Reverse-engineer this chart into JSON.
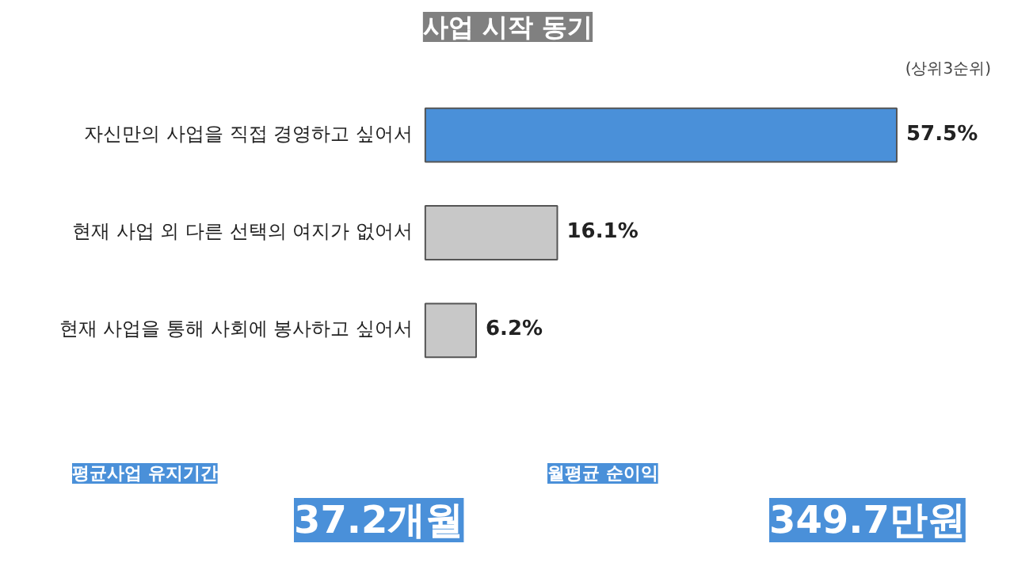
{
  "chart_data": {
    "type": "bar",
    "orientation": "horizontal",
    "title": "사업 시작 동기",
    "subtitle": "(상위3순위)",
    "categories": [
      "자신만의 사업을 직접 경영하고 싶어서",
      "현재 사업 외 다른 선택의 여지가 없어서",
      "현재 사업을 통해 사회에 봉사하고 싶어서"
    ],
    "values": [
      57.5,
      16.1,
      6.2
    ],
    "colors": [
      "#4a90d9",
      "#c8c8c8",
      "#c8c8c8"
    ],
    "value_labels": [
      "57.5%",
      "16.1%",
      "6.2%"
    ],
    "annotations": [
      "평균사업 유지기간",
      "37.2개월",
      "월평균 순이익",
      "349.7만원"
    ]
  }
}
